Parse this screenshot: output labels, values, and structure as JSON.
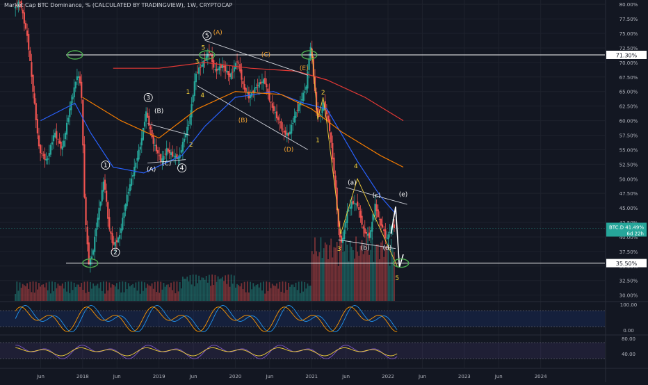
{
  "header": {
    "title": "Market Cap BTC Dominance, % (CALCULATED BY TRADINGVIEW), 1W, CRYPTOCAP"
  },
  "colors": {
    "background": "#131722",
    "grid": "#1e222d",
    "up": "#26a69a",
    "down": "#ef5350",
    "ma_blue": "#2962ff",
    "ma_orange": "#f57c00",
    "ma_red": "#e53935",
    "wave_yellow": "#f5d13b",
    "wave_orange": "#f0a030",
    "ellipse": "#4caf50",
    "stoch_k": "#2196f3",
    "stoch_d": "#ff9800",
    "rsi": "#7e57c2",
    "rsi_ma": "#f5d13b"
  },
  "chart_data": {
    "type": "candlestick",
    "title": "Market Cap BTC Dominance, % (CALCULATED BY TRADINGVIEW), 1W, CRYPTOCAP",
    "price_axis": {
      "ticks": [
        "80.00%",
        "77.50%",
        "75.00%",
        "72.50%",
        "70.00%",
        "67.50%",
        "65.00%",
        "62.50%",
        "60.00%",
        "57.50%",
        "55.00%",
        "52.50%",
        "50.00%",
        "47.50%",
        "45.00%",
        "42.50%",
        "40.00%",
        "37.50%",
        "35.00%",
        "32.50%",
        "30.00%"
      ],
      "range": [
        29.0,
        80.5
      ]
    },
    "time_axis": {
      "ticks": [
        "Jun",
        "2018",
        "Jun",
        "2019",
        "Jun",
        "2020",
        "Jun",
        "2021",
        "Jun",
        "2022",
        "Jun",
        "2023",
        "Jun",
        "2024"
      ]
    },
    "horizontal_levels": [
      {
        "value": 71.3,
        "label": "71.30%"
      },
      {
        "value": 35.5,
        "label": "35.50%"
      }
    ],
    "current": {
      "symbol": "BTC.D",
      "value": "41.49%",
      "countdown": "6d 22h",
      "price": 41.49
    },
    "path_points": [
      {
        "t": 2017.1,
        "v": 79.0
      },
      {
        "t": 2017.2,
        "v": 80.5
      },
      {
        "t": 2017.3,
        "v": 74.0
      },
      {
        "t": 2017.45,
        "v": 55.0
      },
      {
        "t": 2017.55,
        "v": 53.0
      },
      {
        "t": 2017.65,
        "v": 58.0
      },
      {
        "t": 2017.75,
        "v": 55.0
      },
      {
        "t": 2017.85,
        "v": 62.0
      },
      {
        "t": 2017.95,
        "v": 68.0
      },
      {
        "t": 2018.0,
        "v": 66.0
      },
      {
        "t": 2018.05,
        "v": 44.0
      },
      {
        "t": 2018.1,
        "v": 35.5
      },
      {
        "t": 2018.15,
        "v": 37.0
      },
      {
        "t": 2018.2,
        "v": 42.0
      },
      {
        "t": 2018.3,
        "v": 50.0
      },
      {
        "t": 2018.36,
        "v": 42.0
      },
      {
        "t": 2018.42,
        "v": 38.5
      },
      {
        "t": 2018.5,
        "v": 40.0
      },
      {
        "t": 2018.6,
        "v": 47.0
      },
      {
        "t": 2018.7,
        "v": 52.0
      },
      {
        "t": 2018.78,
        "v": 56.0
      },
      {
        "t": 2018.85,
        "v": 61.5
      },
      {
        "t": 2018.95,
        "v": 56.0
      },
      {
        "t": 2019.05,
        "v": 53.0
      },
      {
        "t": 2019.12,
        "v": 55.0
      },
      {
        "t": 2019.2,
        "v": 54.0
      },
      {
        "t": 2019.28,
        "v": 53.5
      },
      {
        "t": 2019.35,
        "v": 57.0
      },
      {
        "t": 2019.42,
        "v": 60.0
      },
      {
        "t": 2019.5,
        "v": 68.0
      },
      {
        "t": 2019.6,
        "v": 70.0
      },
      {
        "t": 2019.68,
        "v": 72.0
      },
      {
        "t": 2019.75,
        "v": 68.5
      },
      {
        "t": 2019.85,
        "v": 69.5
      },
      {
        "t": 2019.95,
        "v": 67.5
      },
      {
        "t": 2020.05,
        "v": 70.5
      },
      {
        "t": 2020.12,
        "v": 66.0
      },
      {
        "t": 2020.2,
        "v": 64.0
      },
      {
        "t": 2020.3,
        "v": 66.0
      },
      {
        "t": 2020.4,
        "v": 67.0
      },
      {
        "t": 2020.48,
        "v": 63.0
      },
      {
        "t": 2020.55,
        "v": 61.0
      },
      {
        "t": 2020.65,
        "v": 58.0
      },
      {
        "t": 2020.72,
        "v": 57.5
      },
      {
        "t": 2020.8,
        "v": 61.0
      },
      {
        "t": 2020.88,
        "v": 63.5
      },
      {
        "t": 2020.95,
        "v": 66.0
      },
      {
        "t": 2021.0,
        "v": 73.0
      },
      {
        "t": 2021.03,
        "v": 70.0
      },
      {
        "t": 2021.08,
        "v": 62.0
      },
      {
        "t": 2021.12,
        "v": 60.5
      },
      {
        "t": 2021.18,
        "v": 63.0
      },
      {
        "t": 2021.25,
        "v": 59.0
      },
      {
        "t": 2021.32,
        "v": 50.0
      },
      {
        "t": 2021.38,
        "v": 40.0
      },
      {
        "t": 2021.42,
        "v": 39.0
      },
      {
        "t": 2021.48,
        "v": 44.0
      },
      {
        "t": 2021.55,
        "v": 46.0
      },
      {
        "t": 2021.62,
        "v": 45.5
      },
      {
        "t": 2021.7,
        "v": 41.0
      },
      {
        "t": 2021.78,
        "v": 40.0
      },
      {
        "t": 2021.85,
        "v": 45.5
      },
      {
        "t": 2021.9,
        "v": 43.0
      },
      {
        "t": 2021.95,
        "v": 41.5
      },
      {
        "t": 2022.0,
        "v": 39.5
      },
      {
        "t": 2022.04,
        "v": 41.0
      },
      {
        "t": 2022.08,
        "v": 42.0
      },
      {
        "t": 2022.11,
        "v": 41.49
      }
    ],
    "moving_averages": [
      {
        "color": "ma_blue",
        "points": [
          [
            2017.45,
            60
          ],
          [
            2017.9,
            63
          ],
          [
            2018.1,
            58
          ],
          [
            2018.4,
            52
          ],
          [
            2018.8,
            51
          ],
          [
            2019.3,
            54
          ],
          [
            2019.6,
            59
          ],
          [
            2020.0,
            64
          ],
          [
            2020.5,
            65
          ],
          [
            2020.9,
            63
          ],
          [
            2021.2,
            62
          ],
          [
            2021.6,
            53
          ],
          [
            2021.9,
            47
          ],
          [
            2022.1,
            44
          ]
        ]
      },
      {
        "color": "ma_orange",
        "points": [
          [
            2018.0,
            64
          ],
          [
            2018.5,
            60
          ],
          [
            2019.0,
            57
          ],
          [
            2019.5,
            62
          ],
          [
            2020.0,
            65
          ],
          [
            2020.6,
            64.5
          ],
          [
            2021.0,
            62
          ],
          [
            2021.4,
            58
          ],
          [
            2021.9,
            54
          ],
          [
            2022.2,
            52
          ]
        ]
      },
      {
        "color": "ma_red",
        "points": [
          [
            2018.4,
            69
          ],
          [
            2019.0,
            69
          ],
          [
            2019.6,
            70
          ],
          [
            2020.2,
            69
          ],
          [
            2020.8,
            68.5
          ],
          [
            2021.2,
            67
          ],
          [
            2021.7,
            64
          ],
          [
            2022.2,
            60
          ]
        ]
      }
    ],
    "wave_labels": [
      {
        "text": "5",
        "t": 2019.63,
        "v": 74.3,
        "color": "white",
        "circled": true
      },
      {
        "text": "(A)",
        "t": 2019.77,
        "v": 74.8,
        "color": "orange"
      },
      {
        "text": "5",
        "t": 2019.58,
        "v": 72.2,
        "color": "yellow"
      },
      {
        "text": "3",
        "t": 2019.5,
        "v": 69.8,
        "color": "yellow"
      },
      {
        "text": "4",
        "t": 2019.57,
        "v": 64.0,
        "color": "yellow"
      },
      {
        "text": "1",
        "t": 2019.38,
        "v": 64.6,
        "color": "yellow"
      },
      {
        "text": "2",
        "t": 2019.42,
        "v": 55.5,
        "color": "yellow"
      },
      {
        "text": "3",
        "t": 2018.86,
        "v": 63.6,
        "color": "white",
        "circled": true
      },
      {
        "text": "(B)",
        "t": 2019.0,
        "v": 61.3,
        "color": "white"
      },
      {
        "text": "(A)",
        "t": 2018.9,
        "v": 51.3,
        "color": "white"
      },
      {
        "text": "(C)",
        "t": 2019.1,
        "v": 52.3,
        "color": "white"
      },
      {
        "text": "4",
        "t": 2019.3,
        "v": 51.5,
        "color": "white",
        "circled": true
      },
      {
        "text": "1",
        "t": 2018.3,
        "v": 52.0,
        "color": "white",
        "circled": true
      },
      {
        "text": "2",
        "t": 2018.43,
        "v": 37.0,
        "color": "white",
        "circled": true
      },
      {
        "text": "(C)",
        "t": 2020.4,
        "v": 71.0,
        "color": "orange"
      },
      {
        "text": "(B)",
        "t": 2020.1,
        "v": 59.7,
        "color": "orange"
      },
      {
        "text": "(D)",
        "t": 2020.7,
        "v": 54.7,
        "color": "orange"
      },
      {
        "text": "(E)",
        "t": 2020.9,
        "v": 68.7,
        "color": "orange"
      },
      {
        "text": "2",
        "t": 2021.15,
        "v": 64.5,
        "color": "yellow"
      },
      {
        "text": "1",
        "t": 2021.08,
        "v": 56.3,
        "color": "yellow"
      },
      {
        "text": "4",
        "t": 2021.58,
        "v": 51.8,
        "color": "yellow"
      },
      {
        "text": "3",
        "t": 2021.36,
        "v": 37.6,
        "color": "yellow"
      },
      {
        "text": "(a)",
        "t": 2021.53,
        "v": 49.0,
        "color": "white"
      },
      {
        "text": "(c)",
        "t": 2021.85,
        "v": 46.8,
        "color": "white"
      },
      {
        "text": "(e)",
        "t": 2022.2,
        "v": 47.0,
        "color": "white"
      },
      {
        "text": "(b)",
        "t": 2021.7,
        "v": 37.8,
        "color": "white"
      },
      {
        "text": "(d)",
        "t": 2021.99,
        "v": 37.8,
        "color": "white"
      },
      {
        "text": "5",
        "t": 2022.12,
        "v": 32.6,
        "color": "yellow"
      }
    ],
    "ellipses": [
      {
        "t": 2017.9,
        "v": 71.3
      },
      {
        "t": 2019.63,
        "v": 71.3
      },
      {
        "t": 2020.97,
        "v": 71.3
      },
      {
        "t": 2018.1,
        "v": 35.5
      },
      {
        "t": 2022.17,
        "v": 35.5
      }
    ],
    "oscillator_1": {
      "ticks": [
        "100.00",
        "0.00"
      ]
    },
    "oscillator_2": {
      "ticks": [
        "80.00",
        "40.00"
      ]
    }
  }
}
